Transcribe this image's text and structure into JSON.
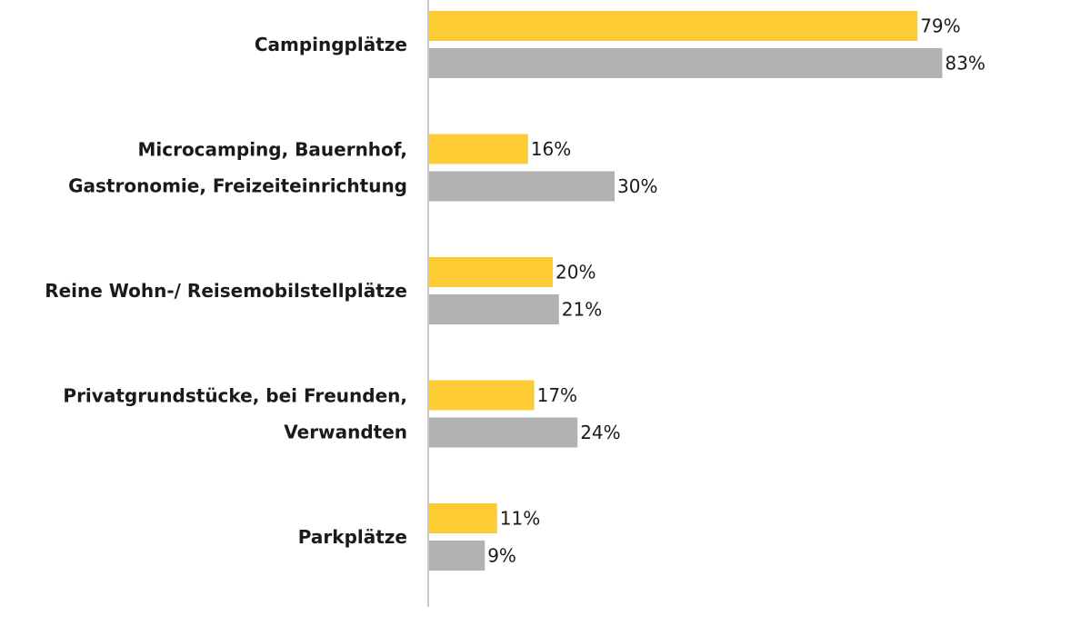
{
  "chart_data": {
    "type": "bar",
    "orientation": "horizontal",
    "grid": false,
    "legend": "none",
    "xlim": [
      0,
      100
    ],
    "value_suffix": "%",
    "categories": [
      [
        "Campingplätze"
      ],
      [
        "Microcamping, Bauernhof,",
        "Gastronomie, Freizeiteinrichtung"
      ],
      [
        "Reine Wohn-/ Reisemobilstellplätze"
      ],
      [
        "Privatgrundstücke, bei Freunden,",
        "Verwandten"
      ],
      [
        "Parkplätze"
      ]
    ],
    "series": [
      {
        "color": "#fdcb33",
        "values": [
          79,
          16,
          20,
          17,
          11
        ]
      },
      {
        "color": "#b2b2b2",
        "values": [
          83,
          30,
          21,
          24,
          9
        ]
      }
    ],
    "axis_color": "#c8c8c8"
  }
}
